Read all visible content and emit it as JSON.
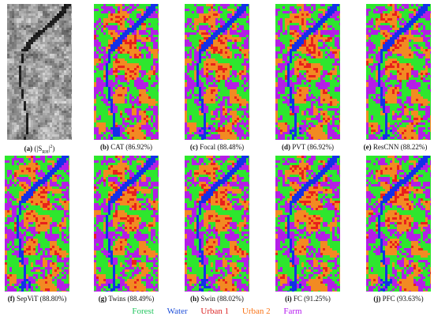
{
  "panels": [
    {
      "id": "a",
      "letter": "(a)",
      "label": "(|S",
      "sub": "RH",
      "sup": "2",
      "tail": "|",
      "close": ")",
      "kind": "sar"
    },
    {
      "id": "b",
      "letter": "(b)",
      "label": "CAT (86.92%)",
      "kind": "map"
    },
    {
      "id": "c",
      "letter": "(c)",
      "label": "Focal (88.48%)",
      "kind": "map"
    },
    {
      "id": "d",
      "letter": "(d)",
      "label": "PVT (86.92%)",
      "kind": "map"
    },
    {
      "id": "e",
      "letter": "(e)",
      "label": "ResCNN (88.22%)",
      "kind": "map"
    },
    {
      "id": "f",
      "letter": "(f)",
      "label": "SepViT (88.80%)",
      "kind": "map"
    },
    {
      "id": "g",
      "letter": "(g)",
      "label": "Twins (88.49%)",
      "kind": "map"
    },
    {
      "id": "h",
      "letter": "(h)",
      "label": "Swin (88.02%)",
      "kind": "map"
    },
    {
      "id": "i",
      "letter": "(i)",
      "label": "FC (91.25%)",
      "kind": "map"
    },
    {
      "id": "j",
      "letter": "(j)",
      "label": "PFC (93.63%)",
      "kind": "map"
    }
  ],
  "legend": [
    {
      "label": "Forest",
      "color": "#22c55e"
    },
    {
      "label": "Water",
      "color": "#1d4ed8"
    },
    {
      "label": "Urban 1",
      "color": "#dc2626"
    },
    {
      "label": "Urban 2",
      "color": "#f97316"
    },
    {
      "label": "Farm",
      "color": "#b517f0"
    }
  ],
  "class_colors": {
    "forest": "#2ee62e",
    "water": "#1430e8",
    "urban1": "#e8201c",
    "urban2": "#f28a22",
    "farm": "#b41ee6"
  }
}
